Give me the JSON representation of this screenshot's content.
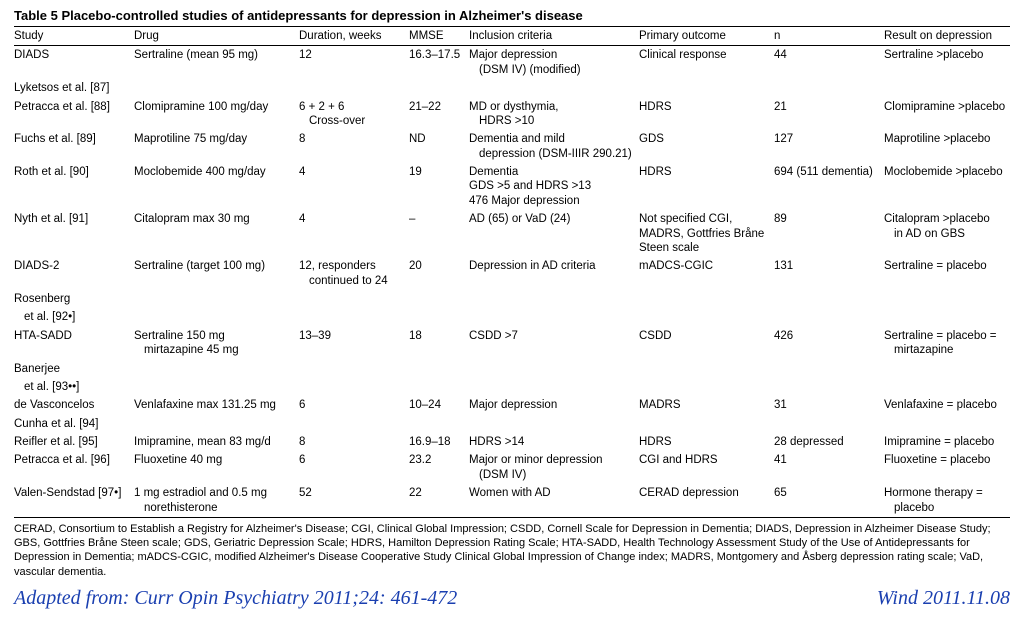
{
  "title": "Table 5  Placebo-controlled studies of antidepressants for depression in Alzheimer's disease",
  "columns": [
    "Study",
    "Drug",
    "Duration, weeks",
    "MMSE",
    "Inclusion criteria",
    "Primary outcome",
    "n",
    "Result on depression"
  ],
  "col_widths": [
    "120px",
    "165px",
    "110px",
    "60px",
    "170px",
    "135px",
    "110px",
    "auto"
  ],
  "rows": [
    {
      "study": "DIADS",
      "study_sub": "Lyketsos et al. [87]",
      "drug": "Sertraline (mean 95 mg)",
      "duration": "12",
      "mmse": "16.3–17.5",
      "inclusion": "Major depression",
      "inclusion_sub": "(DSM IV) (modified)",
      "outcome": "Clinical response",
      "n": "44",
      "result": "Sertraline >placebo"
    },
    {
      "study": "Petracca et al. [88]",
      "drug": "Clomipramine 100 mg/day",
      "duration": "6 + 2 + 6",
      "duration_sub": "Cross-over",
      "mmse": "21–22",
      "inclusion": "MD or dysthymia,",
      "inclusion_sub": "HDRS >10",
      "outcome": "HDRS",
      "n": "21",
      "result": "Clomipramine >placebo"
    },
    {
      "study": "Fuchs et al. [89]",
      "drug": "Maprotiline 75 mg/day",
      "duration": "8",
      "mmse": "ND",
      "inclusion": "Dementia and mild",
      "inclusion_sub": "depression (DSM-IIIR 290.21)",
      "outcome": "GDS",
      "n": "127",
      "result": "Maprotiline >placebo"
    },
    {
      "study": "Roth et al. [90]",
      "drug": "Moclobemide 400 mg/day",
      "duration": "4",
      "mmse": "19",
      "inclusion": "Dementia",
      "inclusion_sub2": "GDS >5 and HDRS >13\n476 Major depression",
      "outcome": "HDRS",
      "n": "694 (511 dementia)",
      "result": "Moclobemide >placebo"
    },
    {
      "study": "Nyth et al. [91]",
      "drug": "Citalopram max 30 mg",
      "duration": "4",
      "mmse": "–",
      "inclusion": "AD (65) or VaD (24)",
      "outcome": "Not specified CGI, MADRS, Gottfries Bråne Steen scale",
      "n": "89",
      "result": "Citalopram >placebo",
      "result_sub": "in AD on GBS"
    },
    {
      "study": "DIADS-2",
      "study_sub": "Rosenberg\n  et al. [92•]",
      "drug": "Sertraline (target 100 mg)",
      "duration": "12, responders",
      "duration_sub": "continued to 24",
      "mmse": "20",
      "inclusion": "Depression in AD criteria",
      "outcome": "mADCS-CGIC",
      "n": "131",
      "result": "Sertraline = placebo"
    },
    {
      "study": "HTA-SADD",
      "study_sub": "Banerjee\n  et al. [93••]",
      "drug": "Sertraline 150 mg",
      "drug_sub": "mirtazapine 45 mg",
      "duration": "13–39",
      "mmse": "18",
      "inclusion": "CSDD >7",
      "outcome": "CSDD",
      "n": "426",
      "result": "Sertraline = placebo =",
      "result_sub": "mirtazapine"
    },
    {
      "study": "de Vasconcelos",
      "study_sub": "Cunha et al. [94]",
      "drug": "Venlafaxine max 131.25 mg",
      "duration": "6",
      "mmse": "10–24",
      "inclusion": "Major depression",
      "outcome": "MADRS",
      "n": "31",
      "result": "Venlafaxine = placebo"
    },
    {
      "study": "Reifler et al. [95]",
      "drug": "Imipramine, mean 83 mg/d",
      "duration": "8",
      "mmse": "16.9–18",
      "inclusion": "HDRS >14",
      "outcome": "HDRS",
      "n": "28 depressed",
      "result": "Imipramine = placebo"
    },
    {
      "study": "Petracca et al. [96]",
      "drug": "Fluoxetine 40 mg",
      "duration": "6",
      "mmse": "23.2",
      "inclusion": "Major or minor depression",
      "inclusion_sub": "(DSM IV)",
      "outcome": "CGI and HDRS",
      "n": "41",
      "result": "Fluoxetine = placebo"
    },
    {
      "study": "Valen-Sendstad [97•]",
      "drug": "1 mg estradiol and 0.5 mg",
      "drug_sub": "norethisterone",
      "duration": "52",
      "mmse": "22",
      "inclusion": "Women with AD",
      "outcome": "CERAD depression",
      "n": "65",
      "result": "Hormone therapy =",
      "result_sub": "placebo"
    }
  ],
  "footnote": "CERAD, Consortium to Establish a Registry for Alzheimer's Disease; CGI, Clinical Global Impression; CSDD, Cornell Scale for Depression in Dementia; DIADS, Depression in Alzheimer Disease Study; GBS, Gottfries Bråne Steen scale; GDS, Geriatric Depression Scale; HDRS, Hamilton Depression Rating Scale; HTA-SADD, Health Technology Assessment Study of the Use of Antidepressants for Depression in Dementia; mADCS-CGIC, modified Alzheimer's Disease Cooperative Study Clinical Global Impression of Change index; MADRS, Montgomery and Åsberg depression rating scale; VaD, vascular dementia.",
  "credit_left": "Adapted from: Curr Opin Psychiatry 2011;24: 461-472",
  "credit_right": "Wind  2011.11.08"
}
